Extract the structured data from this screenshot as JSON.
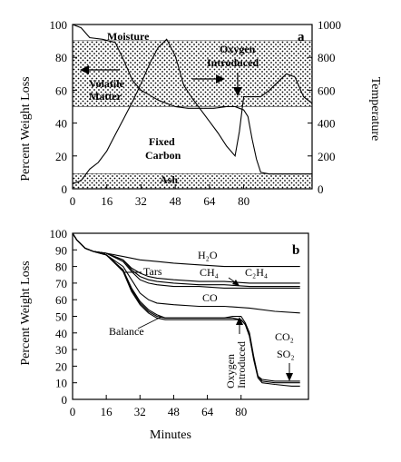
{
  "chart_data": [
    {
      "type": "area",
      "panel_label": "a",
      "xlabel": "",
      "ylabel": "Percent Weight Loss",
      "ylabel_right": "Temperature",
      "xlim": [
        0,
        112
      ],
      "ylim": [
        0,
        100
      ],
      "ylim_right": [
        0,
        1000
      ],
      "x_ticks": [
        "0",
        "16",
        "32",
        "48",
        "64",
        "80"
      ],
      "y_ticks": [
        "0",
        "20",
        "40",
        "60",
        "80",
        "100"
      ],
      "y_ticks_right": [
        "0",
        "200",
        "400",
        "600",
        "800",
        "1000"
      ],
      "regions": [
        {
          "label": "Moisture",
          "y0": 90,
          "y1": 100,
          "pattern": "none"
        },
        {
          "label": "Volatile Matter",
          "y0": 50,
          "y1": 90,
          "pattern": "dots"
        },
        {
          "label": "Fixed Carbon",
          "y0": 9,
          "y1": 50,
          "pattern": "none"
        },
        {
          "label": "Ash",
          "y0": 0,
          "y1": 9,
          "pattern": "dots"
        }
      ],
      "annotations": [
        "Moisture",
        "Volatile Matter",
        "Oxygen Introduced",
        "Fixed Carbon",
        "Ash"
      ],
      "series": [
        {
          "name": "",
          "axis": "left",
          "x": [
            0,
            4,
            8,
            14,
            20,
            24,
            28,
            32,
            36,
            40,
            44,
            48,
            54,
            60,
            66,
            72,
            76,
            78,
            80,
            82,
            84,
            86,
            88,
            92,
            96,
            100,
            104,
            108,
            112
          ],
          "y": [
            100,
            98,
            92,
            91,
            89,
            78,
            66,
            60,
            57,
            54,
            52,
            50,
            49,
            49,
            49,
            50,
            50,
            49,
            48,
            44,
            30,
            18,
            10,
            9,
            9,
            9,
            9,
            9,
            9
          ]
        },
        {
          "name": "",
          "axis": "right",
          "x": [
            0,
            4,
            8,
            12,
            16,
            20,
            24,
            28,
            32,
            36,
            40,
            44,
            48,
            52,
            56,
            60,
            64,
            68,
            72,
            76,
            78,
            80,
            84,
            88,
            92,
            96,
            100,
            104,
            108,
            112
          ],
          "y": [
            30,
            50,
            120,
            160,
            230,
            330,
            430,
            530,
            640,
            760,
            860,
            910,
            810,
            630,
            550,
            480,
            410,
            340,
            260,
            200,
            350,
            560,
            560,
            560,
            600,
            650,
            700,
            680,
            560,
            520
          ]
        }
      ]
    },
    {
      "type": "line",
      "panel_label": "b",
      "xlabel": "Minutes",
      "ylabel": "Percent Weight Loss",
      "xlim": [
        0,
        112
      ],
      "ylim": [
        0,
        100
      ],
      "x_ticks": [
        "0",
        "16",
        "32",
        "48",
        "64",
        "80"
      ],
      "y_ticks": [
        "0",
        "10",
        "20",
        "30",
        "40",
        "50",
        "60",
        "70",
        "80",
        "90",
        "100"
      ],
      "annotations": [
        "Oxygen Introduced"
      ],
      "series": [
        {
          "name": "H₂O",
          "x": [
            0,
            2,
            6,
            10,
            16,
            24,
            32,
            40,
            48,
            60,
            72,
            84,
            96,
            108
          ],
          "y": [
            100,
            96,
            91,
            89,
            88,
            86,
            84,
            83,
            82,
            81,
            80,
            80,
            80,
            80
          ]
        },
        {
          "name": "CH₄",
          "x": [
            0,
            2,
            6,
            10,
            16,
            24,
            28,
            32,
            36,
            40,
            48,
            60,
            72,
            84,
            96,
            108
          ],
          "y": [
            100,
            96,
            91,
            89,
            88,
            84,
            79,
            76,
            74,
            73,
            72,
            71,
            71,
            70,
            70,
            70
          ]
        },
        {
          "name": "C₂H₄",
          "x": [
            0,
            2,
            6,
            10,
            16,
            24,
            28,
            32,
            36,
            40,
            48,
            60,
            72,
            84,
            96,
            108
          ],
          "y": [
            100,
            96,
            91,
            89,
            88,
            84,
            78,
            74,
            72,
            71,
            70,
            69,
            69,
            68,
            68,
            68
          ]
        },
        {
          "name": "Tars",
          "x": [
            0,
            2,
            6,
            10,
            16,
            24,
            28,
            32,
            36,
            40,
            48,
            60,
            72,
            84,
            96,
            108
          ],
          "y": [
            100,
            96,
            91,
            89,
            88,
            83,
            77,
            72,
            70,
            69,
            68,
            68,
            67,
            67,
            67,
            67
          ]
        },
        {
          "name": "CO",
          "x": [
            0,
            2,
            6,
            10,
            16,
            24,
            28,
            32,
            36,
            40,
            48,
            60,
            72,
            84,
            96,
            108
          ],
          "y": [
            100,
            96,
            91,
            89,
            87,
            80,
            72,
            64,
            60,
            58,
            57,
            56,
            56,
            55,
            53,
            52
          ]
        },
        {
          "name": "Balance",
          "x": [
            0,
            2,
            6,
            10,
            16,
            24,
            28,
            32,
            36,
            40,
            44,
            48,
            60,
            72,
            76,
            80,
            82,
            84,
            86,
            88,
            90,
            96,
            104,
            108
          ],
          "y": [
            100,
            96,
            91,
            89,
            87,
            78,
            67,
            59,
            54,
            51,
            49,
            49,
            49,
            49,
            49,
            48,
            45,
            38,
            24,
            13,
            10,
            9,
            8,
            8
          ]
        },
        {
          "name": "CO₂",
          "x": [
            0,
            2,
            6,
            10,
            16,
            24,
            28,
            32,
            36,
            40,
            44,
            48,
            60,
            72,
            76,
            80,
            82,
            84,
            86,
            88,
            90,
            96,
            104,
            108
          ],
          "y": [
            100,
            96,
            91,
            89,
            87,
            78,
            66,
            58,
            53,
            50,
            49,
            49,
            49,
            49,
            50,
            50,
            46,
            40,
            26,
            14,
            11,
            10,
            10,
            10
          ]
        },
        {
          "name": "SO₂",
          "x": [
            0,
            2,
            6,
            10,
            16,
            24,
            28,
            32,
            36,
            40,
            44,
            48,
            60,
            72,
            76,
            80,
            82,
            84,
            86,
            88,
            90,
            96,
            104,
            108
          ],
          "y": [
            100,
            96,
            91,
            89,
            87,
            77,
            65,
            57,
            52,
            49,
            48,
            48,
            48,
            48,
            48,
            48,
            45,
            38,
            25,
            14,
            12,
            11,
            11,
            11
          ]
        }
      ]
    }
  ],
  "text": {
    "a_moisture": "Moisture",
    "a_volatile_1": "Volatile",
    "a_volatile_2": "Matter",
    "a_oxygen_1": "Oxygen",
    "a_oxygen_2": "Introduced",
    "a_fixed_1": "Fixed",
    "a_fixed_2": "Carbon",
    "a_ash": "Ash",
    "b_h2o": "H₂O",
    "b_tars": "Tars",
    "b_ch4": "CH₄",
    "b_c2h4": "C₂H₄",
    "b_co": "CO",
    "b_balance": "Balance",
    "b_oxygen_1": "Oxygen",
    "b_oxygen_2": "Introduced",
    "b_co2": "CO₂",
    "b_so2": "SO₂"
  }
}
